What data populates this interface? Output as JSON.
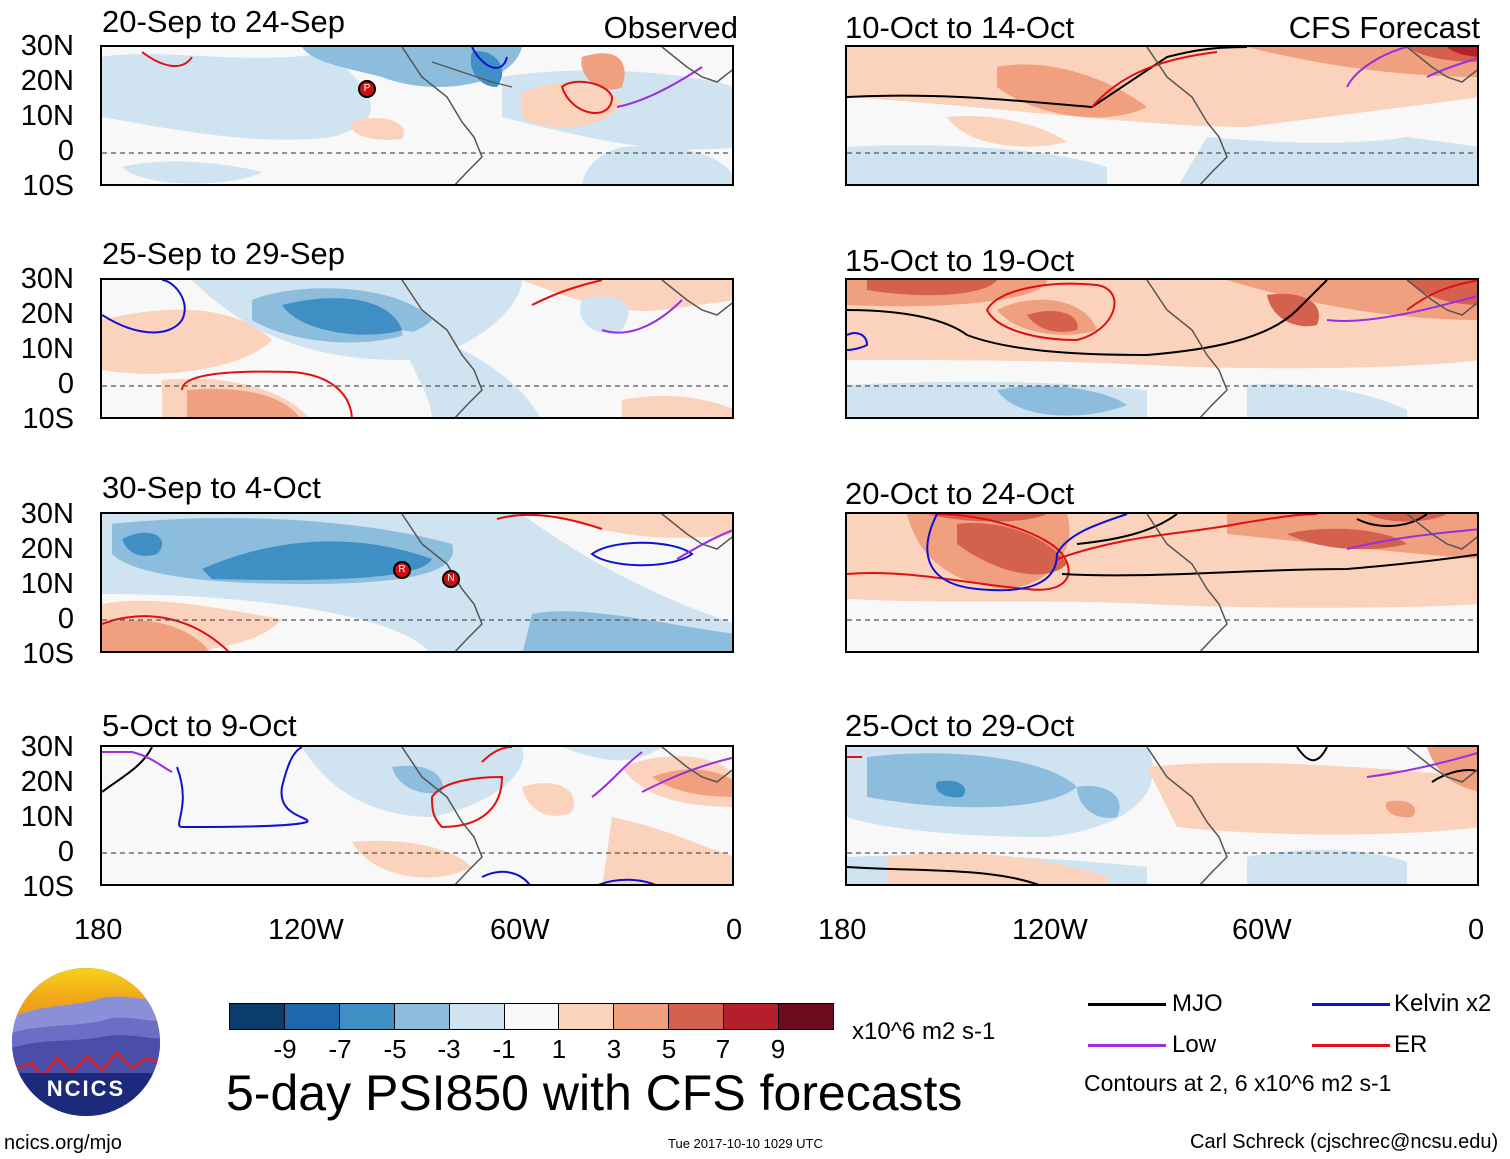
{
  "header": {
    "observed_label": "Observed",
    "forecast_label": "CFS Forecast"
  },
  "panels": [
    {
      "title": "20-Sep to 24-Sep"
    },
    {
      "title": "25-Sep to 29-Sep"
    },
    {
      "title": "30-Sep to 4-Oct"
    },
    {
      "title": "5-Oct to 9-Oct"
    },
    {
      "title": "10-Oct to 14-Oct"
    },
    {
      "title": "15-Oct to 19-Oct"
    },
    {
      "title": "20-Oct to 24-Oct"
    },
    {
      "title": "25-Oct to 29-Oct"
    }
  ],
  "lat_labels": [
    "30N",
    "20N",
    "10N",
    "0",
    "10S"
  ],
  "lon_labels": [
    "180",
    "120W",
    "60W",
    "0"
  ],
  "colorbar": {
    "ticks": [
      "-9",
      "-7",
      "-5",
      "-3",
      "-1",
      "1",
      "3",
      "5",
      "7",
      "9"
    ],
    "units": "x10^6 m2 s-1",
    "colors": [
      "#0b3c6b",
      "#1f66ad",
      "#3f8fc5",
      "#8cbddd",
      "#cfe3f0",
      "#f8f8f8",
      "#fbd3bd",
      "#f0a07f",
      "#d4604e",
      "#b31f2b",
      "#6e0a1e"
    ]
  },
  "product_title": "5-day PSI850 with CFS forecasts",
  "legend": {
    "items": [
      {
        "label": "MJO",
        "color": "#000000"
      },
      {
        "label": "Kelvin x2",
        "color": "#1010d0"
      },
      {
        "label": "Low",
        "color": "#9a2ee0"
      },
      {
        "label": "ER",
        "color": "#e01010"
      }
    ],
    "contours_note": "Contours at 2, 6 x10^6 m2 s-1"
  },
  "logo": {
    "text": "NCICS"
  },
  "footer": {
    "url": "ncics.org/mjo",
    "timestamp": "Tue 2017-10-10 1029 UTC",
    "credit": "Carl Schreck (cjschrec@ncsu.edu)"
  },
  "storms": [
    {
      "panel": 0,
      "letter": "P"
    },
    {
      "panel": 2,
      "letter": "R"
    },
    {
      "panel": 2,
      "letter": "N"
    }
  ]
}
